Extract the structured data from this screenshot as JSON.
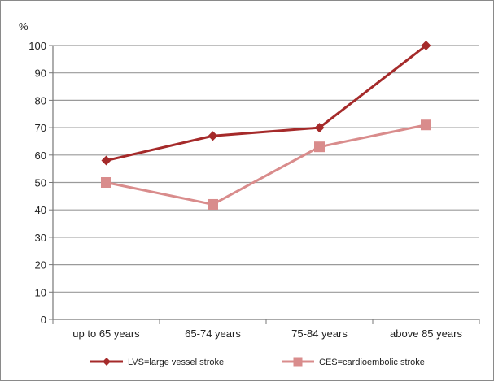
{
  "chart_data": {
    "type": "line",
    "ylabel": "%",
    "ylim": [
      0,
      100
    ],
    "yticks": [
      0,
      10,
      20,
      30,
      40,
      50,
      60,
      70,
      80,
      90,
      100
    ],
    "grid": true,
    "legend_position": "bottom",
    "categories": [
      "up to 65 years",
      "65-74 years",
      "75-84 years",
      "above 85 years"
    ],
    "series": [
      {
        "name": "LVS=large vessel stroke",
        "values": [
          58,
          67,
          70,
          100
        ],
        "color": "#a52a2a",
        "marker": "diamond"
      },
      {
        "name": "CES=cardioembolic stroke",
        "values": [
          50,
          42,
          63,
          71
        ],
        "color": "#d98c8c",
        "marker": "square"
      }
    ]
  }
}
